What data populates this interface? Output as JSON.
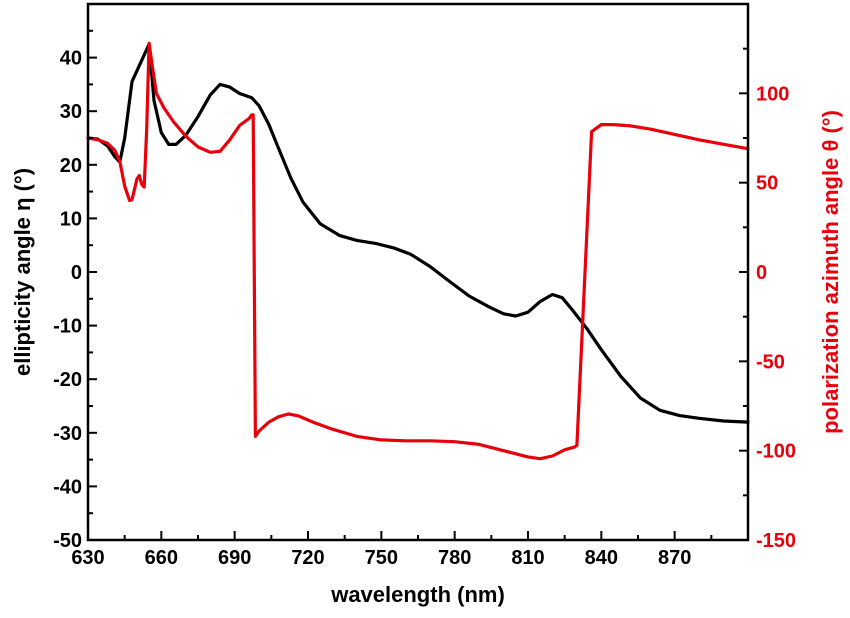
{
  "chart_data": {
    "type": "line",
    "xlabel": "wavelength (nm)",
    "ylabel_left": "ellipticity angle η (°)",
    "ylabel_right": "polarization azimuth angle θ (°)",
    "xlim": [
      630,
      900
    ],
    "ylim_left": [
      -50,
      50
    ],
    "ylim_right": [
      -150,
      150
    ],
    "x_ticks": [
      630,
      660,
      690,
      720,
      750,
      780,
      810,
      840,
      870
    ],
    "y_ticks_left": [
      -50,
      -40,
      -30,
      -20,
      -10,
      0,
      10,
      20,
      30,
      40
    ],
    "y_ticks_right": [
      -150,
      -100,
      -50,
      0,
      50,
      100
    ],
    "grid": false,
    "colors": {
      "left_axis": "#000000",
      "right_axis": "#e8000b"
    },
    "series": [
      {
        "axis": "left",
        "color": "#000000",
        "points": [
          [
            630,
            25
          ],
          [
            634,
            24.8
          ],
          [
            638,
            23.5
          ],
          [
            641,
            21.5
          ],
          [
            643,
            20.5
          ],
          [
            645,
            25
          ],
          [
            648,
            35.5
          ],
          [
            651,
            38.5
          ],
          [
            653,
            40.5
          ],
          [
            655,
            42.5
          ],
          [
            657,
            32
          ],
          [
            660,
            26
          ],
          [
            663,
            23.8
          ],
          [
            666,
            23.8
          ],
          [
            670,
            25.5
          ],
          [
            675,
            29
          ],
          [
            680,
            33
          ],
          [
            684,
            35
          ],
          [
            688,
            34.5
          ],
          [
            692,
            33.3
          ],
          [
            697,
            32.5
          ],
          [
            700,
            31
          ],
          [
            704,
            27.5
          ],
          [
            708,
            23
          ],
          [
            713,
            17.5
          ],
          [
            718,
            13
          ],
          [
            725,
            9
          ],
          [
            733,
            6.8
          ],
          [
            740,
            5.9
          ],
          [
            748,
            5.3
          ],
          [
            755,
            4.5
          ],
          [
            762,
            3.3
          ],
          [
            770,
            1
          ],
          [
            778,
            -1.8
          ],
          [
            786,
            -4.5
          ],
          [
            794,
            -6.5
          ],
          [
            800,
            -7.8
          ],
          [
            805,
            -8.2
          ],
          [
            810,
            -7.5
          ],
          [
            815,
            -5.5
          ],
          [
            820,
            -4.2
          ],
          [
            824,
            -4.8
          ],
          [
            828,
            -7
          ],
          [
            834,
            -10.5
          ],
          [
            840,
            -14.5
          ],
          [
            848,
            -19.5
          ],
          [
            856,
            -23.5
          ],
          [
            864,
            -25.8
          ],
          [
            872,
            -26.8
          ],
          [
            880,
            -27.3
          ],
          [
            890,
            -27.8
          ],
          [
            900,
            -28
          ]
        ]
      },
      {
        "axis": "right",
        "color": "#e8000b",
        "points": [
          [
            630,
            75
          ],
          [
            634,
            74
          ],
          [
            638,
            72
          ],
          [
            641,
            68
          ],
          [
            643,
            62
          ],
          [
            645,
            48
          ],
          [
            647,
            40
          ],
          [
            648,
            40.5
          ],
          [
            649,
            46
          ],
          [
            650,
            52
          ],
          [
            651,
            54
          ],
          [
            652,
            49
          ],
          [
            653,
            47.5
          ],
          [
            654,
            80
          ],
          [
            655,
            128
          ],
          [
            656,
            118
          ],
          [
            658,
            100
          ],
          [
            661,
            92
          ],
          [
            665,
            84
          ],
          [
            670,
            76
          ],
          [
            675,
            70
          ],
          [
            680,
            67
          ],
          [
            684,
            67.5
          ],
          [
            688,
            74
          ],
          [
            692,
            82
          ],
          [
            696,
            86
          ],
          [
            697,
            88
          ],
          [
            697.6,
            88
          ],
          [
            698.5,
            -92
          ],
          [
            700,
            -89
          ],
          [
            704,
            -84
          ],
          [
            708,
            -81
          ],
          [
            712,
            -79.5
          ],
          [
            716,
            -80.5
          ],
          [
            722,
            -84
          ],
          [
            730,
            -88
          ],
          [
            740,
            -92
          ],
          [
            750,
            -94
          ],
          [
            760,
            -94.5
          ],
          [
            770,
            -94.5
          ],
          [
            780,
            -95
          ],
          [
            790,
            -96.5
          ],
          [
            800,
            -100
          ],
          [
            810,
            -103.5
          ],
          [
            815,
            -104.5
          ],
          [
            820,
            -103
          ],
          [
            825,
            -99.5
          ],
          [
            829,
            -98
          ],
          [
            830,
            -97
          ],
          [
            836,
            78.5
          ],
          [
            840,
            82.5
          ],
          [
            845,
            82.5
          ],
          [
            852,
            81.8
          ],
          [
            860,
            80
          ],
          [
            870,
            77
          ],
          [
            880,
            74
          ],
          [
            890,
            71.5
          ],
          [
            900,
            69
          ]
        ]
      }
    ]
  }
}
